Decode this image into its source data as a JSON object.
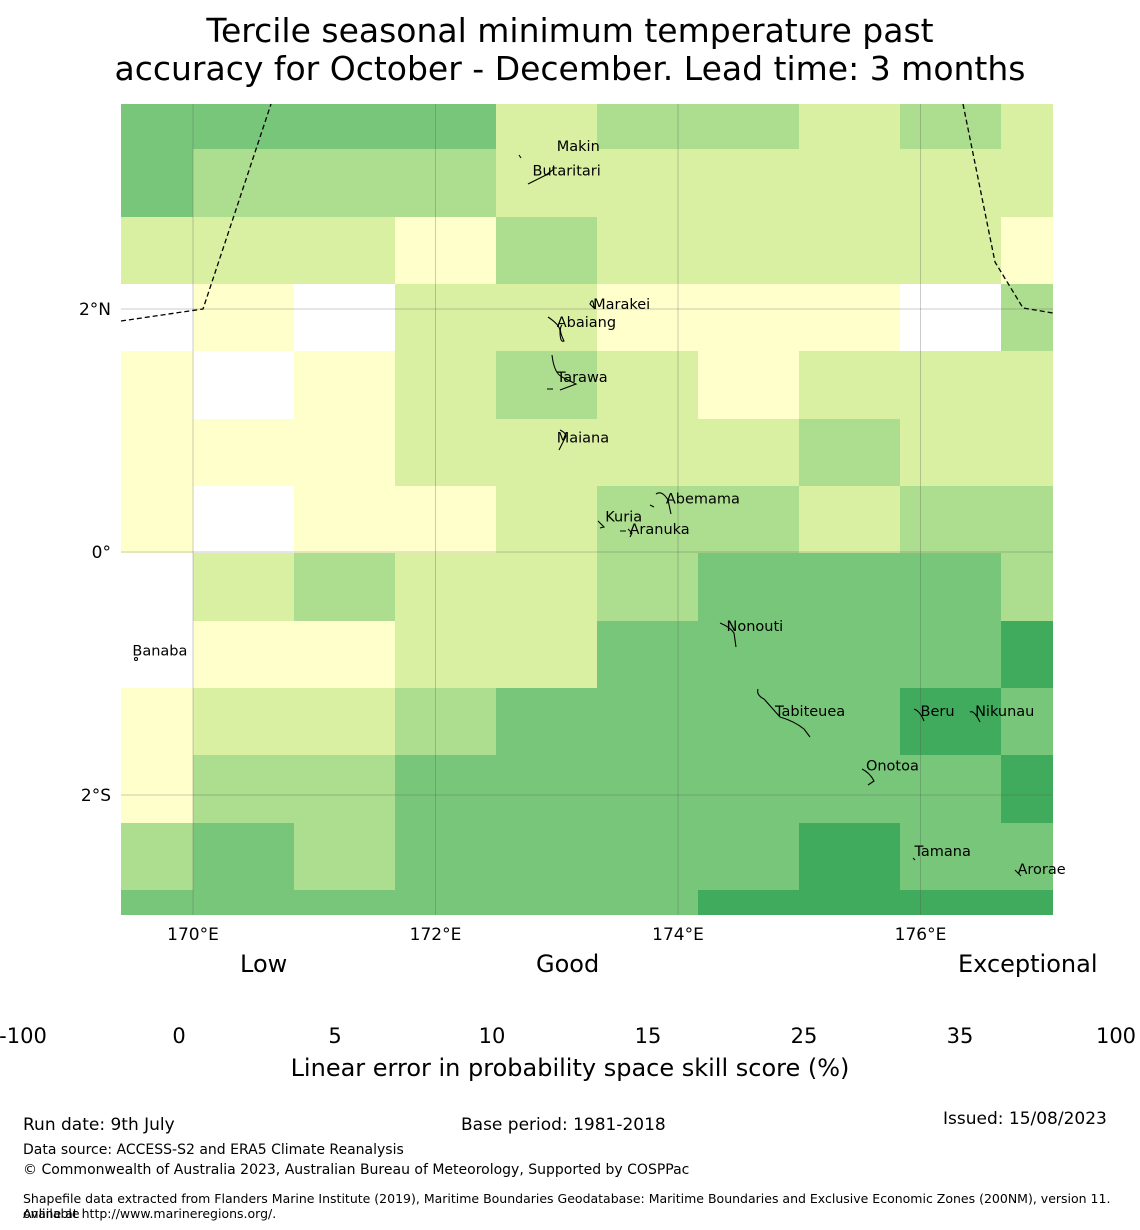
{
  "title_line1": "Tercile seasonal minimum temperature past",
  "title_line2": "accuracy for October - December. Lead time: 3 months",
  "map": {
    "lon_ticks": [
      "170°E",
      "172°E",
      "174°E",
      "176°E"
    ],
    "lat_ticks": [
      "2°N",
      "0°",
      "2°S"
    ],
    "places": [
      {
        "name": "Makin",
        "lon": 173.0,
        "lat": 3.3
      },
      {
        "name": "Butaritari",
        "lon": 172.8,
        "lat": 3.1
      },
      {
        "name": "Marakei",
        "lon": 173.3,
        "lat": 2.0
      },
      {
        "name": "Abaiang",
        "lon": 173.0,
        "lat": 1.85
      },
      {
        "name": "Tarawa",
        "lon": 173.0,
        "lat": 1.4
      },
      {
        "name": "Maiana",
        "lon": 173.0,
        "lat": 0.9
      },
      {
        "name": "Abemama",
        "lon": 173.9,
        "lat": 0.4
      },
      {
        "name": "Kuria",
        "lon": 173.4,
        "lat": 0.25
      },
      {
        "name": "Aranuka",
        "lon": 173.6,
        "lat": 0.15
      },
      {
        "name": "Nonouti",
        "lon": 174.4,
        "lat": -0.65
      },
      {
        "name": "Banaba",
        "lon": 169.5,
        "lat": -0.85
      },
      {
        "name": "Tabiteuea",
        "lon": 174.8,
        "lat": -1.35
      },
      {
        "name": "Beru",
        "lon": 176.0,
        "lat": -1.35
      },
      {
        "name": "Nikunau",
        "lon": 176.45,
        "lat": -1.35
      },
      {
        "name": "Onotoa",
        "lon": 175.55,
        "lat": -1.8
      },
      {
        "name": "Tamana",
        "lon": 175.95,
        "lat": -2.5
      },
      {
        "name": "Arorae",
        "lon": 176.8,
        "lat": -2.65
      }
    ],
    "grid": {
      "note_units": "LEPS skill score category index 0..6 (0=-100..0, 1=0..5, 2=5..10, 3=10..15, 4=15..25, 5=25..35, 6=35..100)",
      "cells": [
        [
          4,
          4,
          4,
          4,
          2,
          3,
          3,
          2,
          3,
          2
        ],
        [
          4,
          3,
          3,
          3,
          2,
          2,
          2,
          2,
          2,
          2
        ],
        [
          2,
          2,
          2,
          1,
          3,
          2,
          2,
          2,
          2,
          1
        ],
        [
          0,
          1,
          0,
          2,
          2,
          1,
          1,
          1,
          0,
          3
        ],
        [
          1,
          0,
          1,
          2,
          3,
          2,
          1,
          2,
          2,
          2
        ],
        [
          1,
          1,
          1,
          2,
          2,
          2,
          2,
          3,
          2,
          2
        ],
        [
          1,
          0,
          1,
          1,
          2,
          3,
          3,
          2,
          3,
          3
        ],
        [
          0,
          2,
          3,
          2,
          2,
          3,
          4,
          4,
          4,
          3
        ],
        [
          0,
          1,
          1,
          2,
          2,
          4,
          4,
          4,
          4,
          5
        ],
        [
          1,
          2,
          2,
          3,
          4,
          4,
          4,
          4,
          5,
          4
        ],
        [
          1,
          3,
          3,
          4,
          4,
          4,
          4,
          4,
          4,
          5
        ],
        [
          3,
          4,
          3,
          4,
          4,
          4,
          4,
          5,
          4,
          4
        ],
        [
          4,
          4,
          4,
          4,
          4,
          4,
          5,
          5,
          5,
          5
        ]
      ]
    }
  },
  "colorbar": {
    "words": [
      "Low",
      "Good",
      "Exceptional"
    ],
    "ticks": [
      "-100",
      "0",
      "5",
      "10",
      "15",
      "25",
      "35",
      "100"
    ],
    "colors": [
      "#ffffff",
      "#ffffcc",
      "#d9f0a3",
      "#addd8e",
      "#78c679",
      "#41ab5d",
      "#238443"
    ],
    "label": "Linear error in probability space skill score (%)"
  },
  "footer": {
    "run_date": "Run date: 9th July",
    "base_period": "Base period: 1981-2018",
    "issued": "Issued: 15/08/2023",
    "data_source": "Data source: ACCESS-S2 and ERA5 Climate Reanalysis",
    "copyright": "© Commonwealth of Australia 2023, Australian Bureau of Meteorology, Supported by COSPPac",
    "shapefile_line1": "Shapefile data extracted from Flanders Marine Institute (2019), Maritime Boundaries Geodatabase: Maritime Boundaries and Exclusive Economic Zones (200NM), version 11. Available",
    "shapefile_line2": "online at http://www.marineregions.org/."
  }
}
